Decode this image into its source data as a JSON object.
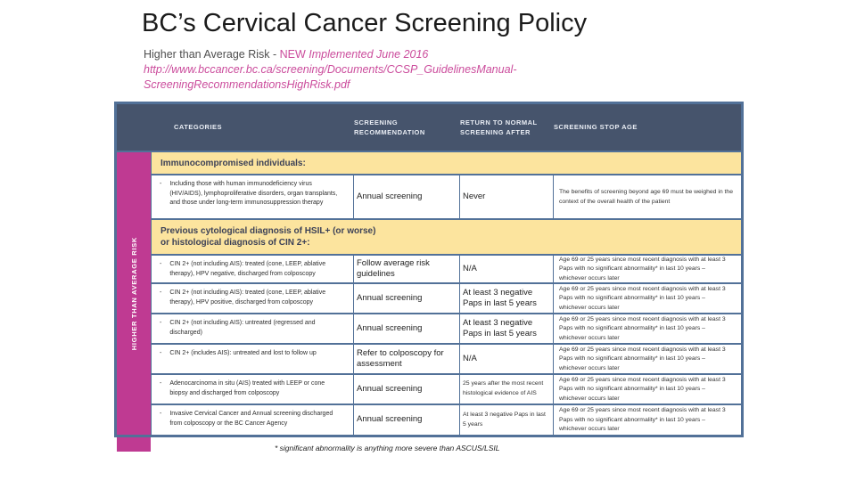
{
  "slide": {
    "title": "BC’s Cervical Cancer Screening Policy",
    "subtitle": {
      "prefix": "Higher than Average Risk - ",
      "badge": "NEW",
      "note": " Implemented June 2016"
    },
    "url_line1": "http://www.bccancer.bc.ca/screening/Documents/CCSP_GuidelinesManual-",
    "url_line2": "ScreeningRecommendationsHighRisk.pdf",
    "footnote": "* significant abnormality is anything more severe than ASCUS/LSIL"
  },
  "table": {
    "side_label": "HIGHER THAN AVERAGE RISK",
    "bullet": "-",
    "headers": [
      "CATEGORIES",
      "SCREENING RECOMMENDATION",
      "RETURN TO NORMAL SCREENING AFTER",
      "SCREENING STOP AGE"
    ],
    "sections": {
      "s1": "Immunocompromised individuals:",
      "s2_line1": "Previous cytological diagnosis of HSIL+ (or worse)",
      "s2_line2": "or histological diagnosis of CIN 2+:"
    },
    "rows": [
      {
        "category": "Including those with human immunodeficiency virus (HIV/AIDS), lymphoproliferative disorders, organ transplants, and those under long-term immunosuppression therapy",
        "recommendation": "Annual screening",
        "return_after": "Never",
        "stop_age": "The benefits of screening beyond age 69 must be weighed in the context of the overall health of the patient"
      },
      {
        "category": "CIN 2+ (not including AIS): treated (cone, LEEP, ablative therapy), HPV negative, discharged from colposcopy",
        "recommendation": "Follow average risk guidelines",
        "return_after": "N/A",
        "stop_age": "Age 69 or 25 years since most recent diagnosis with at least 3 Paps with no significant abnormality* in last 10 years – whichever occurs later"
      },
      {
        "category": "CIN 2+ (not including AIS): treated (cone, LEEP, ablative therapy), HPV positive, discharged from colposcopy",
        "recommendation": "Annual screening",
        "return_after": "At least 3 negative Paps in last 5 years",
        "stop_age": "Age 69 or 25 years since most recent diagnosis with at least 3 Paps with no significant abnormality* in last 10 years – whichever occurs later"
      },
      {
        "category": "CIN 2+ (not including AIS): untreated (regressed and discharged)",
        "recommendation": "Annual screening",
        "return_after": "At least 3 negative Paps in last 5 years",
        "stop_age": "Age 69 or 25 years since most recent diagnosis with at least 3 Paps with no significant abnormality* in last 10 years – whichever occurs later"
      },
      {
        "category": "CIN 2+ (includes AIS): untreated and lost to follow up",
        "recommendation": "Refer to colposcopy for assessment",
        "return_after": "N/A",
        "stop_age": "Age 69 or 25 years since most recent diagnosis with at least 3 Paps with no significant abnormality* in last 10 years – whichever occurs later"
      },
      {
        "category": "Adenocarcinoma in situ (AIS) treated with LEEP or cone biopsy and discharged from colposcopy",
        "recommendation": "Annual screening",
        "return_after": "25 years after the most recent histological evidence of AIS",
        "stop_age": "Age 69 or 25 years since most recent diagnosis with at least 3 Paps with no significant abnormality* in last 10 years – whichever occurs later"
      },
      {
        "category": "Invasive Cervical Cancer and Annual screening discharged from colposcopy or the BC Cancer Agency",
        "recommendation": "Annual screening",
        "return_after": "At least 3 negative Paps in last 5 years",
        "stop_age": "Age 69 or 25 years since most recent diagnosis with at least 3 Paps with no significant abnormality* in last 10 years – whichever occurs later"
      }
    ]
  },
  "colors": {
    "accent_pink": "#bf3a92",
    "header_bg": "#46546c",
    "band_yellow": "#fce49e",
    "table_border": "#527198",
    "subtitle_pink": "#cb4c9c"
  }
}
